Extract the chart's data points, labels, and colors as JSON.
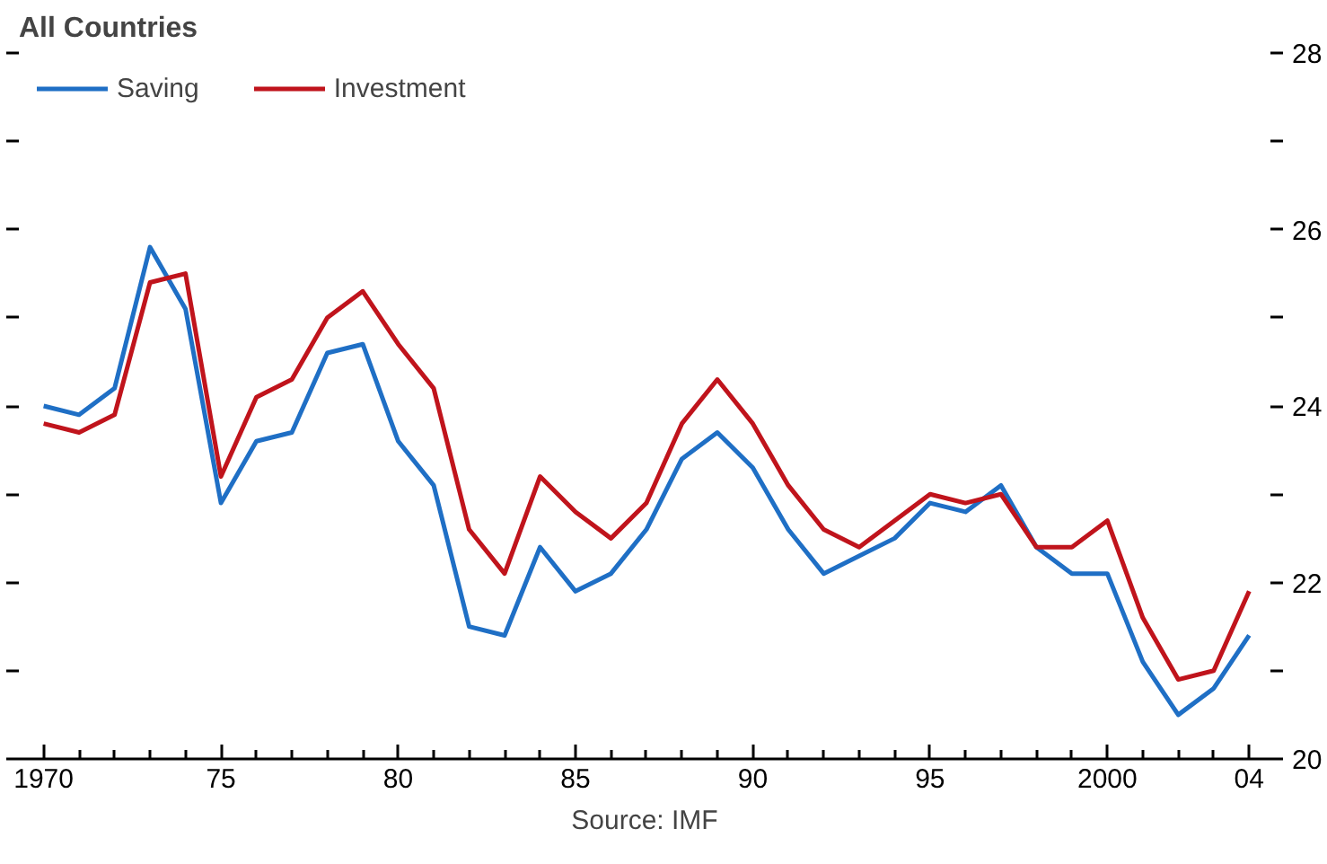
{
  "chart_data": {
    "type": "line",
    "title": "All Countries",
    "x": [
      1970,
      1971,
      1972,
      1973,
      1974,
      1975,
      1976,
      1977,
      1978,
      1979,
      1980,
      1981,
      1982,
      1983,
      1984,
      1985,
      1986,
      1987,
      1988,
      1989,
      1990,
      1991,
      1992,
      1993,
      1994,
      1995,
      1996,
      1997,
      1998,
      1999,
      2000,
      2001,
      2002,
      2003,
      2004
    ],
    "series": [
      {
        "name": "Saving",
        "color": "#1f6fc5",
        "values": [
          24.0,
          23.9,
          24.2,
          25.8,
          25.1,
          22.9,
          23.6,
          23.7,
          24.6,
          24.7,
          23.6,
          23.1,
          21.5,
          21.4,
          22.4,
          21.9,
          22.1,
          22.6,
          23.4,
          23.7,
          23.3,
          22.6,
          22.1,
          22.3,
          22.5,
          22.9,
          22.8,
          23.1,
          22.4,
          22.1,
          22.1,
          21.1,
          20.5,
          20.8,
          21.4
        ]
      },
      {
        "name": "Investment",
        "color": "#c0141c",
        "values": [
          23.8,
          23.7,
          23.9,
          25.4,
          25.5,
          23.2,
          24.1,
          24.3,
          25.0,
          25.3,
          24.7,
          24.2,
          22.6,
          22.1,
          23.2,
          22.8,
          22.5,
          22.9,
          23.8,
          24.3,
          23.8,
          23.1,
          22.6,
          22.4,
          22.7,
          23.0,
          22.9,
          23.0,
          22.4,
          22.4,
          22.7,
          21.6,
          20.9,
          21.0,
          21.9
        ]
      }
    ],
    "xlim": [
      1969.3,
      2004.6
    ],
    "ylim": [
      20,
      28
    ],
    "xticks": [
      {
        "value": 1970,
        "label": "1970"
      },
      {
        "value": 1971,
        "label": null
      },
      {
        "value": 1972,
        "label": null
      },
      {
        "value": 1973,
        "label": null
      },
      {
        "value": 1974,
        "label": null
      },
      {
        "value": 1975,
        "label": "75"
      },
      {
        "value": 1976,
        "label": null
      },
      {
        "value": 1977,
        "label": null
      },
      {
        "value": 1978,
        "label": null
      },
      {
        "value": 1979,
        "label": null
      },
      {
        "value": 1980,
        "label": "80"
      },
      {
        "value": 1981,
        "label": null
      },
      {
        "value": 1982,
        "label": null
      },
      {
        "value": 1983,
        "label": null
      },
      {
        "value": 1984,
        "label": null
      },
      {
        "value": 1985,
        "label": "85"
      },
      {
        "value": 1986,
        "label": null
      },
      {
        "value": 1987,
        "label": null
      },
      {
        "value": 1988,
        "label": null
      },
      {
        "value": 1989,
        "label": null
      },
      {
        "value": 1990,
        "label": "90"
      },
      {
        "value": 1991,
        "label": null
      },
      {
        "value": 1992,
        "label": null
      },
      {
        "value": 1993,
        "label": null
      },
      {
        "value": 1994,
        "label": null
      },
      {
        "value": 1995,
        "label": "95"
      },
      {
        "value": 1996,
        "label": null
      },
      {
        "value": 1997,
        "label": null
      },
      {
        "value": 1998,
        "label": null
      },
      {
        "value": 1999,
        "label": null
      },
      {
        "value": 2000,
        "label": "2000"
      },
      {
        "value": 2001,
        "label": null
      },
      {
        "value": 2002,
        "label": null
      },
      {
        "value": 2003,
        "label": null
      },
      {
        "value": 2004,
        "label": "04"
      }
    ],
    "yticks": [
      20,
      {
        "value": 21,
        "label": null
      },
      22,
      {
        "value": 23,
        "label": null
      },
      24,
      {
        "value": 25,
        "label": null
      },
      26,
      {
        "value": 27,
        "label": null
      },
      28
    ],
    "grid": false,
    "legend": "top left",
    "marker": "none",
    "line_style": "solid",
    "annotations": [
      "Source: IMF"
    ]
  }
}
